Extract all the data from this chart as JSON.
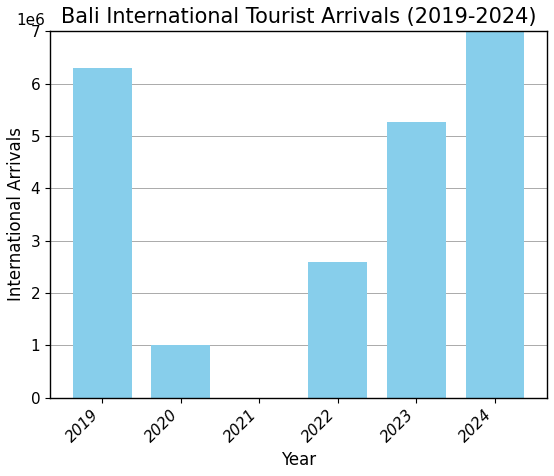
{
  "title": "Bali International Tourist Arrivals (2019-2024)",
  "xlabel": "Year",
  "ylabel": "International Arrivals",
  "categories": [
    "2019",
    "2020",
    "2021",
    "2022",
    "2023",
    "2024"
  ],
  "values": [
    6300000,
    1000000,
    0,
    2600000,
    5270000,
    7000000
  ],
  "bar_color": "#87CEEB",
  "bar_edgecolor": "none",
  "ylim": [
    0,
    7000000
  ],
  "ytick_interval": 1000000,
  "grid_color": "#aaaaaa",
  "grid_linewidth": 0.7,
  "title_fontsize": 15,
  "label_fontsize": 12,
  "tick_fontsize": 11,
  "bar_width": 0.75
}
